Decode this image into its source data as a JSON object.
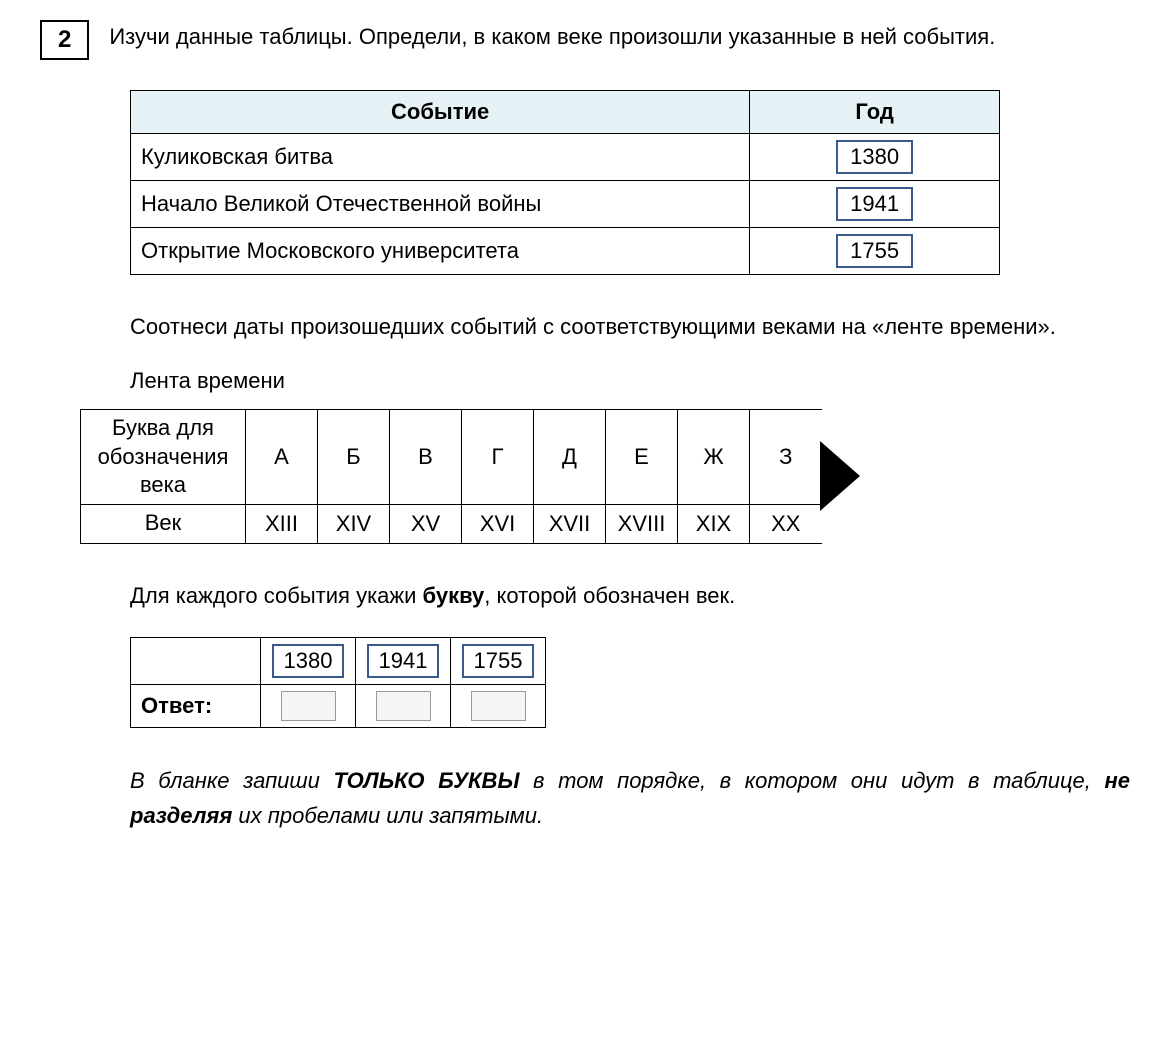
{
  "task_number": "2",
  "task_text": "Изучи данные таблицы. Определи, в каком веке произошли указанные в ней события.",
  "events_table": {
    "headers": {
      "event": "Событие",
      "year": "Год"
    },
    "rows": [
      {
        "event": "Куликовская битва",
        "year": "1380"
      },
      {
        "event": "Начало Великой Отечественной войны",
        "year": "1941"
      },
      {
        "event": "Открытие Московского университета",
        "year": "1755"
      }
    ],
    "header_bg": "#e6f2f5",
    "year_box_border": "#3a5a8a"
  },
  "match_instruction": "Соотнеси даты произошедших событий с соответствующими веками на «ленте времени».",
  "timeline_heading": "Лента времени",
  "timeline": {
    "row_labels": {
      "letter": "Буква для обозначения века",
      "century": "Век"
    },
    "letters": [
      "А",
      "Б",
      "В",
      "Г",
      "Д",
      "Е",
      "Ж",
      "З"
    ],
    "centuries": [
      "XIII",
      "XIV",
      "XV",
      "XVI",
      "XVII",
      "XVIII",
      "XIX",
      "XX"
    ]
  },
  "letter_instruction_pre": "Для каждого события укажи ",
  "letter_instruction_bold": "букву",
  "letter_instruction_post": ", которой обозначен век.",
  "answer": {
    "years": [
      "1380",
      "1941",
      "1755"
    ],
    "label": "Ответ:"
  },
  "note_parts": {
    "p1": "В бланке запиши ",
    "p2_bold": "ТОЛЬКО БУКВЫ",
    "p3": " в том порядке, в котором они идут в таблице, ",
    "p4_bold": "не разделяя",
    "p5": " их пробелами или запятыми."
  }
}
